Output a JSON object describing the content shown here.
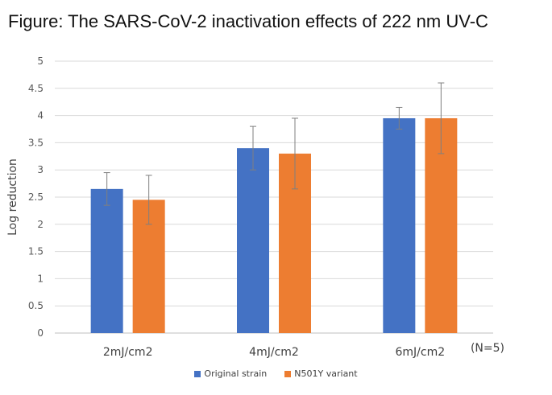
{
  "title": "Figure: The SARS-CoV-2 inactivation effects of 222 nm UV-C",
  "note": "(N=5)",
  "chart_data": {
    "type": "bar",
    "title": "Figure: The SARS-CoV-2 inactivation effects of 222 nm UV-C",
    "xlabel": "",
    "ylabel": "Log reduction",
    "ylim": [
      0,
      5
    ],
    "yticks": [
      "0",
      "0.5",
      "1",
      "1.5",
      "2",
      "2.5",
      "3",
      "3.5",
      "4",
      "4.5",
      "5"
    ],
    "grid": true,
    "legend_position": "bottom",
    "categories": [
      "2mJ/cm2",
      "4mJ/cm2",
      "6mJ/cm2"
    ],
    "series": [
      {
        "name": "Original strain",
        "color": "#4472C4",
        "values": [
          2.65,
          3.4,
          3.95
        ],
        "error_low": [
          2.35,
          3.0,
          3.75
        ],
        "error_high": [
          2.95,
          3.8,
          4.15
        ]
      },
      {
        "name": "N501Y variant",
        "color": "#ED7D31",
        "values": [
          2.45,
          3.3,
          3.95
        ],
        "error_low": [
          2.0,
          2.65,
          3.3
        ],
        "error_high": [
          2.9,
          3.95,
          4.6
        ]
      }
    ]
  }
}
